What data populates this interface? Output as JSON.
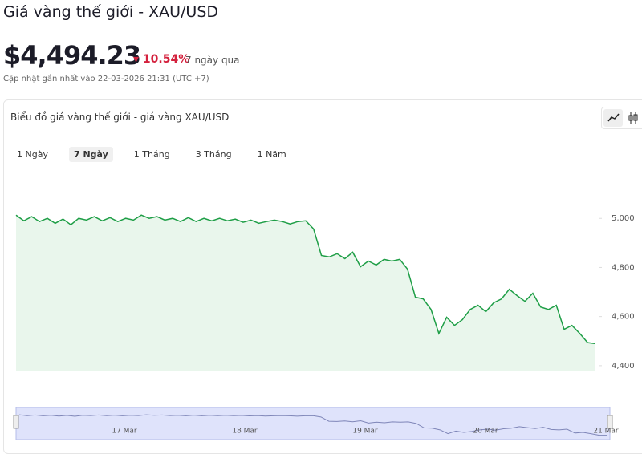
{
  "header": {
    "title": "Giá vàng thế giới - XAU/USD",
    "price": "$4,494.23",
    "change": "10.54%",
    "period": "7 ngày qua",
    "updated": "Cập nhật gần nhất vào 22-03-2026 21:31 (UTC +7)"
  },
  "card": {
    "title": "Biểu đồ giá vàng thế giới - giá vàng XAU/USD",
    "tabs": [
      "1 Ngày",
      "7 Ngày",
      "1 Tháng",
      "3 Tháng",
      "1 Năm"
    ],
    "active_tab": 1
  },
  "navigator": {
    "labels": [
      "17 Mar",
      "18 Mar",
      "19 Mar",
      "20 Mar",
      "21 Mar"
    ]
  },
  "chart_data": {
    "type": "line",
    "color": "#1e9e46",
    "fill": "#e9f6ec",
    "values": [
      5013,
      4990,
      5007,
      4987,
      5000,
      4980,
      4997,
      4974,
      5000,
      4993,
      5007,
      4990,
      5003,
      4987,
      5000,
      4993,
      5013,
      5000,
      5007,
      4993,
      5000,
      4987,
      5003,
      4987,
      5000,
      4990,
      5000,
      4990,
      4997,
      4984,
      4993,
      4980,
      4987,
      4993,
      4987,
      4977,
      4987,
      4990,
      4957,
      4849,
      4843,
      4856,
      4836,
      4862,
      4803,
      4826,
      4810,
      4833,
      4826,
      4833,
      4793,
      4679,
      4672,
      4629,
      4531,
      4597,
      4564,
      4587,
      4629,
      4646,
      4620,
      4656,
      4672,
      4711,
      4685,
      4662,
      4695,
      4639,
      4629,
      4646,
      4548,
      4564,
      4531,
      4494,
      4490
    ],
    "ylim": [
      4380,
      5200
    ],
    "yticks": [
      {
        "value": 4400,
        "label": "4,400"
      },
      {
        "value": 4600,
        "label": "4,600"
      },
      {
        "value": 4800,
        "label": "4,800"
      },
      {
        "value": 5000,
        "label": "5,000"
      }
    ]
  }
}
